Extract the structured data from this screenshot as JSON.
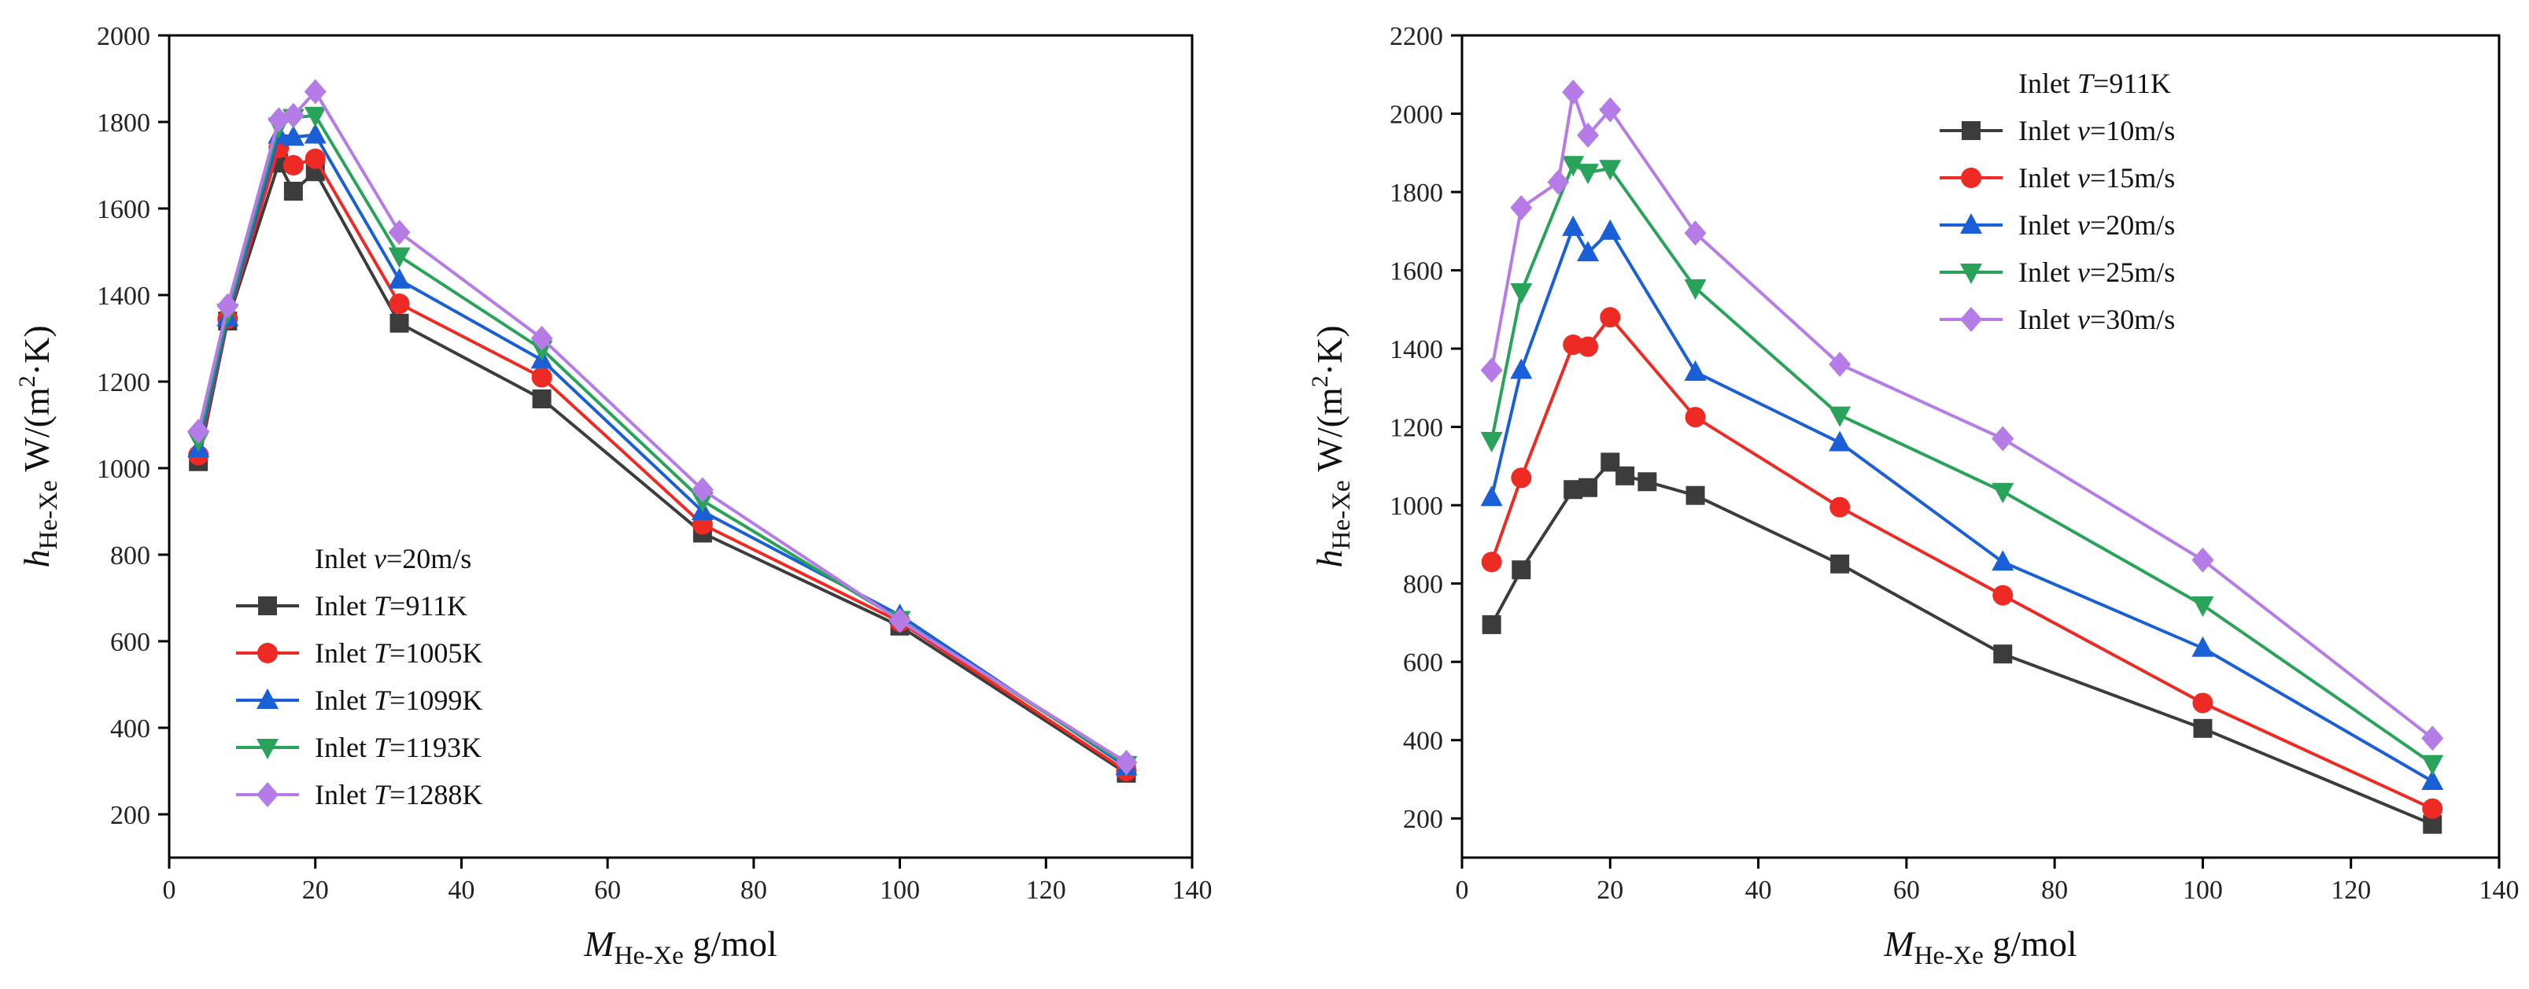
{
  "chart_data": [
    {
      "type": "line",
      "panel": "left",
      "x_unit_label": " g/mol",
      "x_symbol": "M",
      "x_sub": "He-Xe",
      "y_symbol": "h",
      "y_sub": "He-Xe",
      "y_unit_pre": " W/(m",
      "y_unit_sup": "2",
      "y_unit_post": "·K)",
      "xlim": [
        0,
        140
      ],
      "ylim": [
        100,
        2000
      ],
      "xticks": [
        0,
        20,
        40,
        60,
        80,
        100,
        120,
        140
      ],
      "yticks": [
        200,
        400,
        600,
        800,
        1000,
        1200,
        1400,
        1600,
        1800,
        2000
      ],
      "legend": {
        "placement": "bottom-left",
        "header_pre": "Inlet ",
        "header_var": "v",
        "header_post": "=20m/s"
      },
      "series": [
        {
          "name_pre": "Inlet ",
          "name_var": "T",
          "name_post": "=911K",
          "color": "#3c3c3c",
          "marker": "square",
          "x": [
            4,
            8,
            15,
            17,
            20,
            31.5,
            51,
            73,
            100,
            131
          ],
          "values": [
            1015,
            1340,
            1705,
            1640,
            1685,
            1335,
            1160,
            850,
            635,
            295
          ]
        },
        {
          "name_pre": "Inlet ",
          "name_var": "T",
          "name_post": "=1005K",
          "color": "#ee2a24",
          "marker": "circle",
          "x": [
            4,
            8,
            15,
            17,
            20,
            31.5,
            51,
            73,
            100,
            131
          ],
          "values": [
            1030,
            1345,
            1740,
            1700,
            1715,
            1380,
            1210,
            870,
            645,
            300
          ]
        },
        {
          "name_pre": "Inlet ",
          "name_var": "T",
          "name_post": "=1099K",
          "color": "#1a5fd6",
          "marker": "triangle-up",
          "x": [
            4,
            8,
            15,
            17,
            20,
            31.5,
            51,
            73,
            100,
            131
          ],
          "values": [
            1045,
            1348,
            1770,
            1765,
            1770,
            1435,
            1250,
            900,
            660,
            310
          ]
        },
        {
          "name_pre": "Inlet ",
          "name_var": "T",
          "name_post": "=1193K",
          "color": "#2aa35a",
          "marker": "triangle-down",
          "x": [
            4,
            8,
            15,
            17,
            20,
            31.5,
            51,
            73,
            100,
            131
          ],
          "values": [
            1065,
            1360,
            1790,
            1810,
            1815,
            1490,
            1275,
            925,
            650,
            315
          ]
        },
        {
          "name_pre": "Inlet ",
          "name_var": "T",
          "name_post": "=1288K",
          "color": "#b57be6",
          "marker": "diamond",
          "x": [
            4,
            8,
            15,
            17,
            20,
            31.5,
            51,
            73,
            100,
            131
          ],
          "values": [
            1085,
            1375,
            1805,
            1815,
            1870,
            1545,
            1300,
            950,
            648,
            320
          ]
        }
      ]
    },
    {
      "type": "line",
      "panel": "right",
      "x_unit_label": " g/mol",
      "x_symbol": "M",
      "x_sub": "He-Xe",
      "y_symbol": "h",
      "y_sub": "He-Xe",
      "y_unit_pre": " W/(m",
      "y_unit_sup": "2",
      "y_unit_post": "·K)",
      "xlim": [
        0,
        140
      ],
      "ylim": [
        100,
        2200
      ],
      "xticks": [
        0,
        20,
        40,
        60,
        80,
        100,
        120,
        140
      ],
      "yticks": [
        200,
        400,
        600,
        800,
        1000,
        1200,
        1400,
        1600,
        1800,
        2000,
        2200
      ],
      "legend": {
        "placement": "top-right",
        "header_pre": "Inlet ",
        "header_var": "T",
        "header_post": "=911K"
      },
      "series": [
        {
          "name_pre": "Inlet ",
          "name_var": "v",
          "name_post": "=10m/s",
          "color": "#3c3c3c",
          "marker": "square",
          "x": [
            4,
            8,
            15,
            17,
            20,
            22,
            25,
            31.5,
            51,
            73,
            100,
            131
          ],
          "values": [
            695,
            835,
            1040,
            1045,
            1110,
            1075,
            1060,
            1025,
            850,
            620,
            430,
            185
          ]
        },
        {
          "name_pre": "Inlet ",
          "name_var": "v",
          "name_post": "=15m/s",
          "color": "#ee2a24",
          "marker": "circle",
          "x": [
            4,
            8,
            15,
            17,
            20,
            31.5,
            51,
            73,
            100,
            131
          ],
          "values": [
            855,
            1070,
            1410,
            1405,
            1480,
            1225,
            995,
            770,
            495,
            225
          ]
        },
        {
          "name_pre": "Inlet ",
          "name_var": "v",
          "name_post": "=20m/s",
          "color": "#1a5fd6",
          "marker": "triangle-up",
          "x": [
            4,
            8,
            15,
            17,
            20,
            31.5,
            51,
            73,
            100,
            131
          ],
          "values": [
            1020,
            1345,
            1710,
            1645,
            1700,
            1340,
            1160,
            855,
            635,
            295
          ]
        },
        {
          "name_pre": "Inlet ",
          "name_var": "v",
          "name_post": "=25m/s",
          "color": "#2aa35a",
          "marker": "triangle-down",
          "x": [
            4,
            8,
            15,
            17,
            20,
            31.5,
            51,
            73,
            100,
            131
          ],
          "values": [
            1165,
            1545,
            1870,
            1850,
            1860,
            1555,
            1230,
            1035,
            745,
            340
          ]
        },
        {
          "name_pre": "Inlet ",
          "name_var": "v",
          "name_post": "=30m/s",
          "color": "#b57be6",
          "marker": "diamond",
          "x": [
            4,
            8,
            13,
            15,
            17,
            20,
            31.5,
            51,
            73,
            100,
            131
          ],
          "values": [
            1345,
            1760,
            1825,
            2055,
            1945,
            2010,
            1695,
            1360,
            1170,
            860,
            405
          ]
        }
      ]
    }
  ]
}
